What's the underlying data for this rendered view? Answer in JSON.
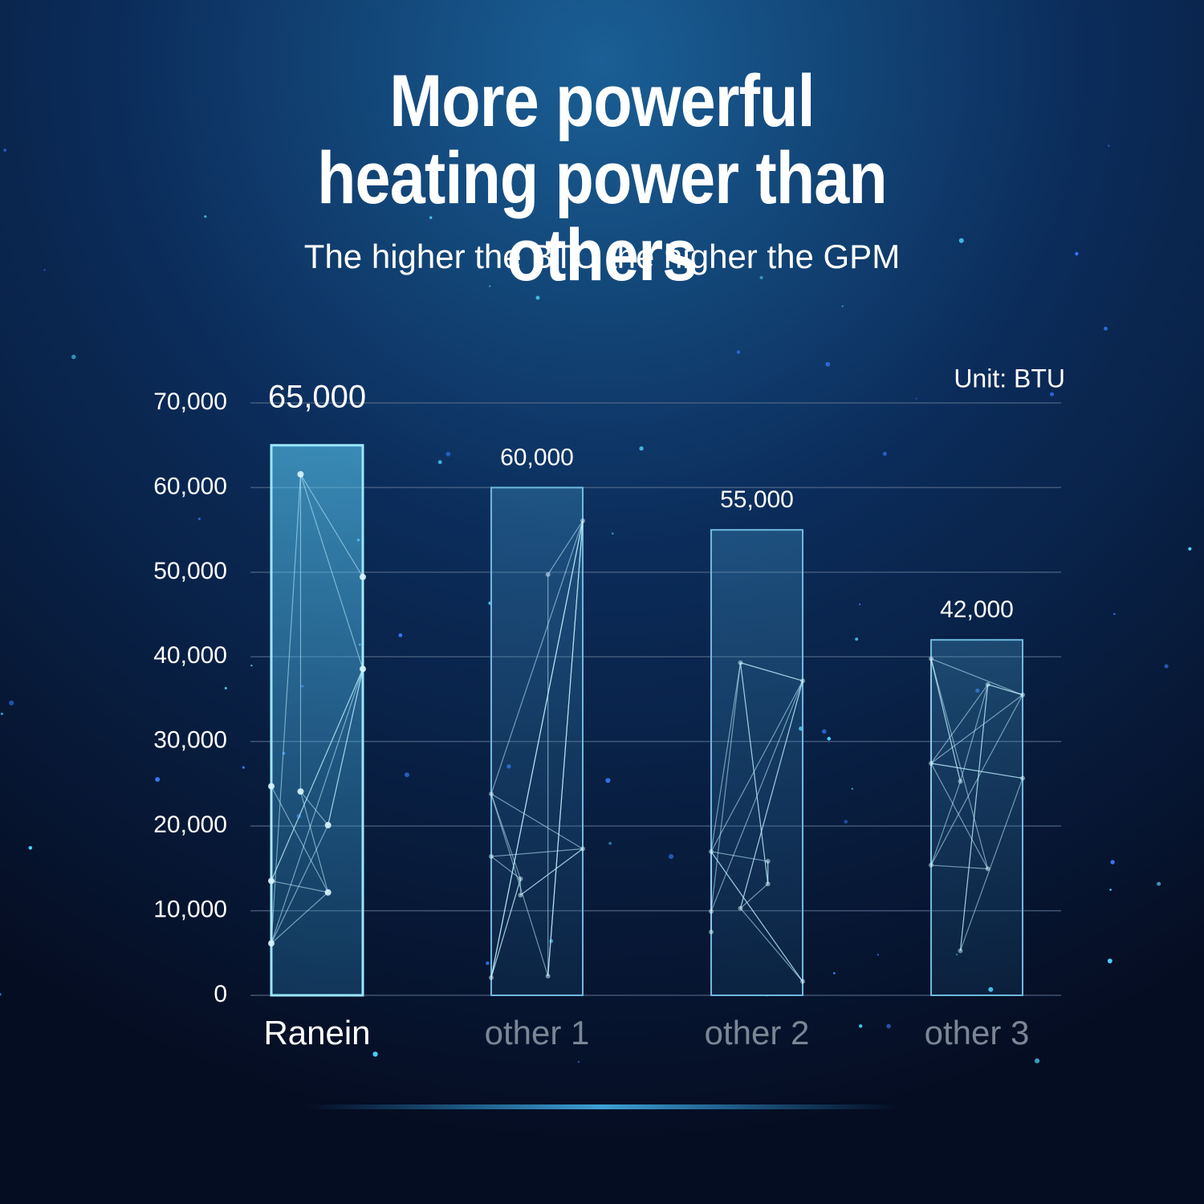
{
  "chart_data": {
    "type": "bar",
    "title": "More powerful heating power than others",
    "subtitle": "The higher the BTU the higher the GPM",
    "unit_label": "Unit: BTU",
    "categories": [
      "Ranein",
      "other 1",
      "other 2",
      "other 3"
    ],
    "values": [
      65000,
      60000,
      55000,
      42000
    ],
    "value_labels": [
      "65,000",
      "60,000",
      "55,000",
      "42,000"
    ],
    "label_colors": [
      "#ffffff",
      "#7b8696",
      "#7b8696",
      "#7b8696"
    ],
    "color": "#4fc3f0",
    "ylim": [
      0,
      70000
    ],
    "yticks": [
      0,
      {
        "value": 10000,
        "label": "10,000"
      },
      {
        "value": 20000,
        "label": "20,000"
      },
      {
        "value": 30000,
        "label": "30,000"
      },
      {
        "value": 40000,
        "label": "40,000"
      },
      {
        "value": 50000,
        "label": "50,000"
      },
      {
        "value": 60000,
        "label": "60,000"
      },
      {
        "value": 70000,
        "label": "70,000"
      }
    ],
    "grid": true
  }
}
